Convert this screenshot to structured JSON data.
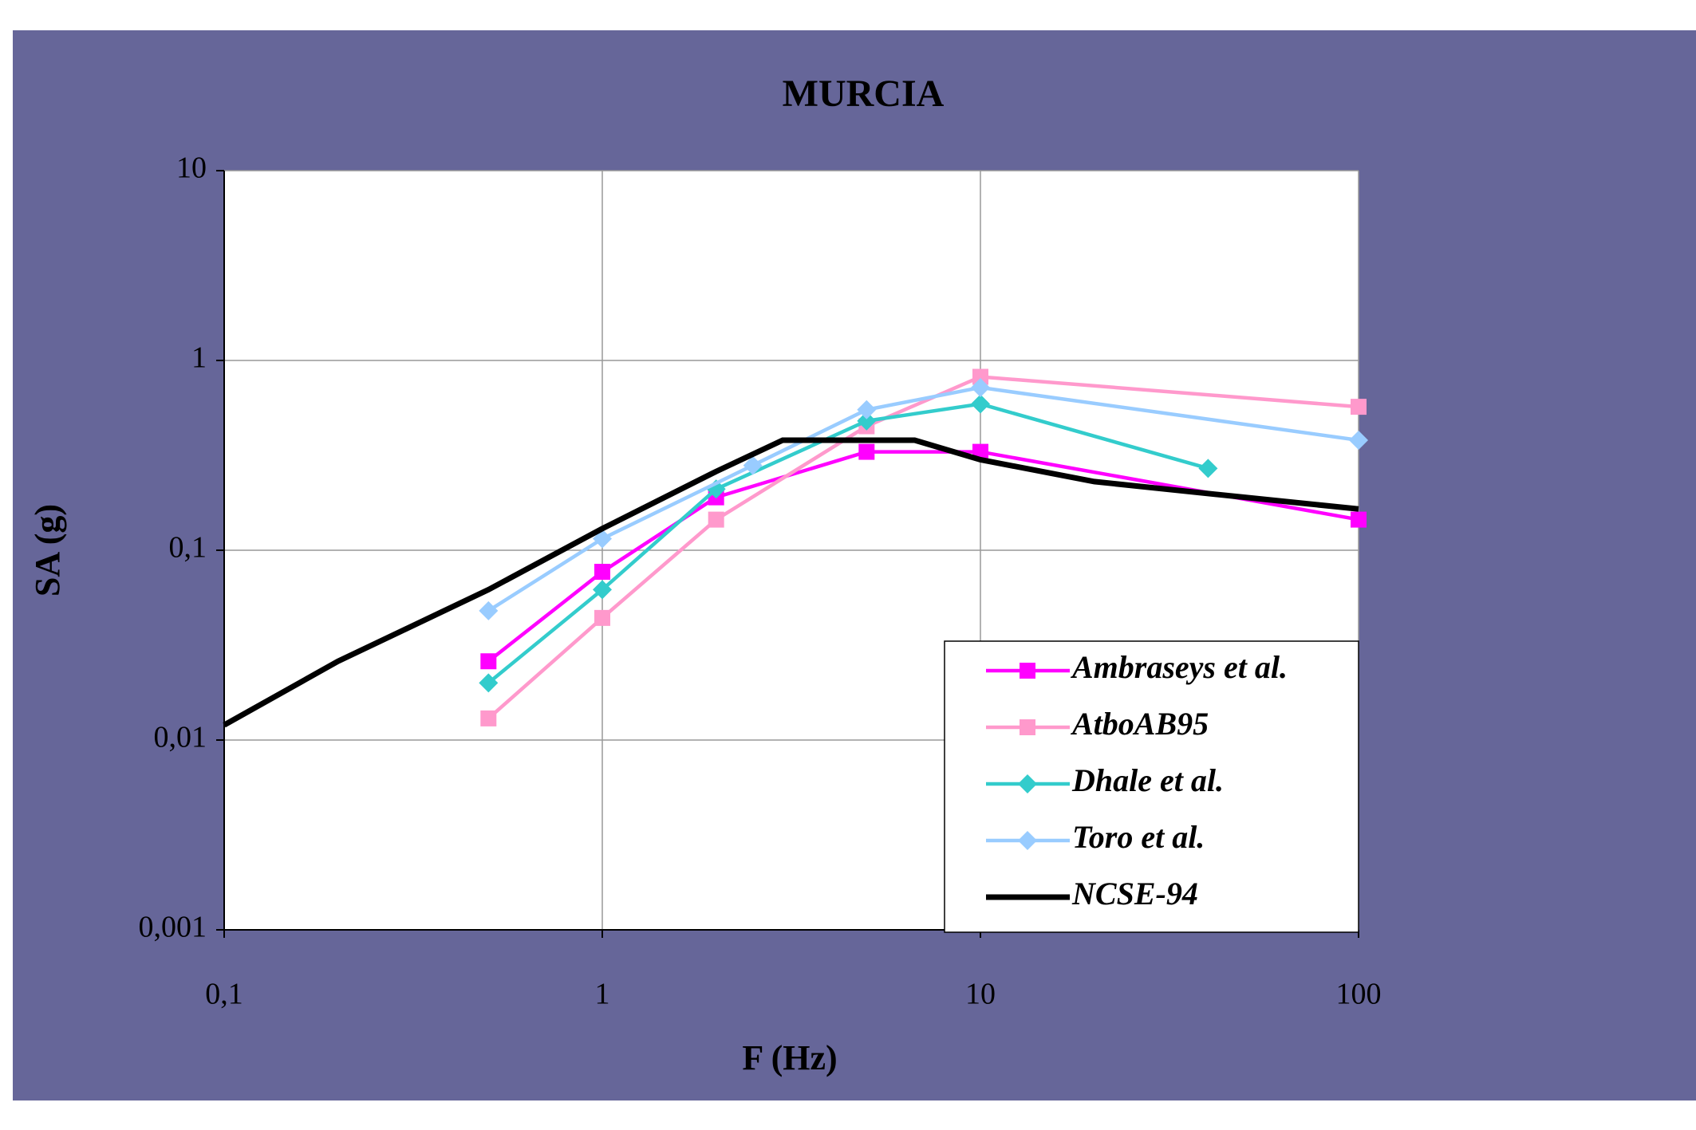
{
  "chart_data": {
    "type": "line",
    "title": "MURCIA",
    "x_label": "F (Hz)",
    "y_label": "SA (g)",
    "xlog": true,
    "ylog": true,
    "grid": true,
    "legend": "lower right",
    "xlim": [
      0.1,
      100
    ],
    "xticks": [
      {
        "value": 0.1,
        "label": "0,1"
      },
      1,
      10,
      100
    ],
    "ylim": [
      0.001,
      10
    ],
    "yticks": [
      {
        "value": 0.001,
        "label": "0,001"
      },
      {
        "value": 0.01,
        "label": "0,01"
      },
      {
        "value": 0.1,
        "label": "0,1"
      },
      1,
      10
    ],
    "series": [
      {
        "name": "Ambraseys et al.",
        "color": "#ff00ff",
        "marker": "square",
        "x": [
          0.5,
          1,
          2,
          5,
          10,
          100
        ],
        "values": [
          0.026,
          0.077,
          0.19,
          0.33,
          0.33,
          0.145
        ]
      },
      {
        "name": "AtboAB95",
        "color": "#ff99cc",
        "marker": "square",
        "x": [
          0.5,
          1,
          2,
          5,
          10,
          100
        ],
        "values": [
          0.013,
          0.044,
          0.145,
          0.45,
          0.82,
          0.57
        ]
      },
      {
        "name": "Dhale et al.",
        "color": "#33cccc",
        "marker": "diamond",
        "x": [
          0.5,
          1,
          2,
          5,
          10,
          40
        ],
        "values": [
          0.02,
          0.062,
          0.21,
          0.48,
          0.59,
          0.27
        ]
      },
      {
        "name": "Toro et al.",
        "color": "#99ccff",
        "marker": "diamond",
        "x": [
          0.5,
          1,
          2.5,
          5,
          10,
          100
        ],
        "values": [
          0.048,
          0.115,
          0.28,
          0.55,
          0.72,
          0.38
        ]
      },
      {
        "name": "NCSE-94",
        "color": "#000000",
        "marker": "none",
        "x": [
          0.1,
          0.2,
          0.5,
          1,
          2,
          3,
          6.7,
          10,
          20,
          50,
          100
        ],
        "values": [
          0.012,
          0.026,
          0.062,
          0.13,
          0.26,
          0.38,
          0.38,
          0.3,
          0.23,
          0.19,
          0.165
        ]
      }
    ]
  }
}
